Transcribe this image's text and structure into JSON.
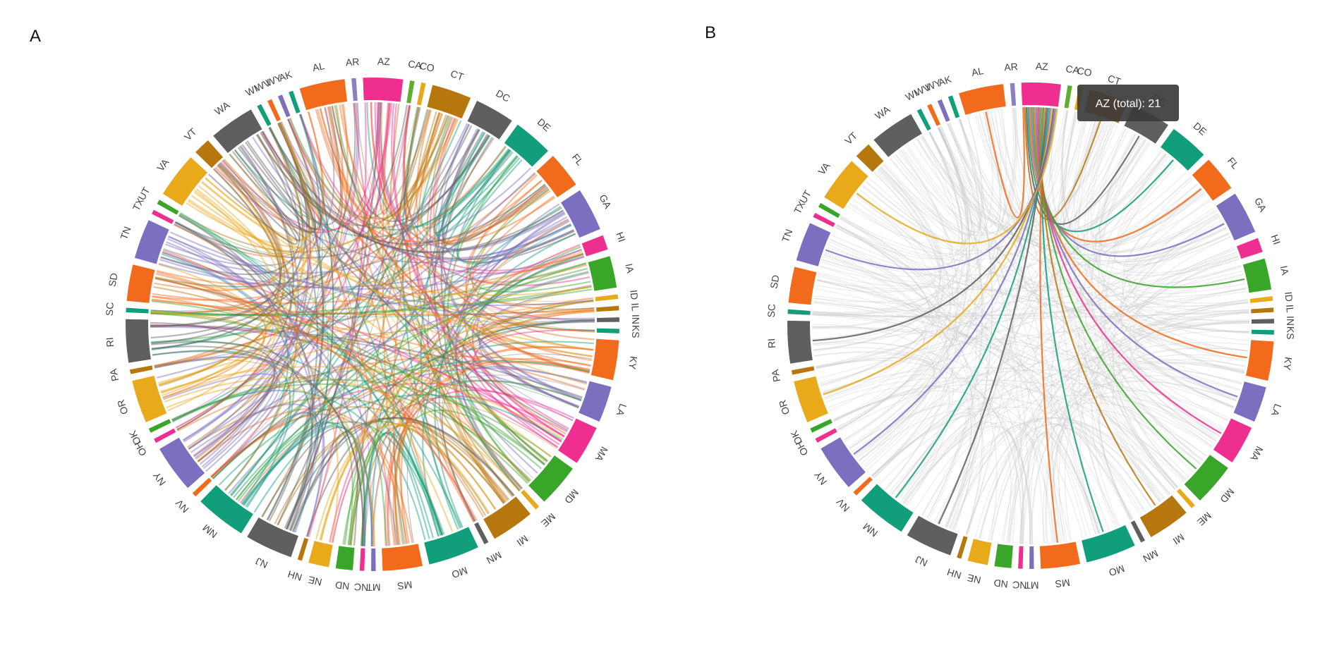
{
  "panels": [
    {
      "id": "A",
      "label": "A",
      "highlight": null
    },
    {
      "id": "B",
      "label": "B",
      "highlight": "AZ"
    }
  ],
  "tooltip": {
    "text": "AZ (total): 21"
  },
  "segments": [
    {
      "code": "AL",
      "size": 4,
      "color": "#f26a1b"
    },
    {
      "code": "AR",
      "size": 0.4,
      "color": "#8b80c0"
    },
    {
      "code": "AZ",
      "size": 3.5,
      "color": "#ee2f8f"
    },
    {
      "code": "CA",
      "size": 0.4,
      "color": "#5fae2e"
    },
    {
      "code": "CO",
      "size": 0.4,
      "color": "#e8a91a"
    },
    {
      "code": "CT",
      "size": 3.5,
      "color": "#b7770f"
    },
    {
      "code": "DC",
      "size": 3.5,
      "color": "#5f5f5f"
    },
    {
      "code": "DE",
      "size": 3.5,
      "color": "#119e7b"
    },
    {
      "code": "FL",
      "size": 3.2,
      "color": "#f26a1b"
    },
    {
      "code": "GA",
      "size": 3.8,
      "color": "#7b6fbf"
    },
    {
      "code": "HI",
      "size": 1.3,
      "color": "#ee2f8f"
    },
    {
      "code": "IA",
      "size": 2.8,
      "color": "#3aa629"
    },
    {
      "code": "ID",
      "size": 0.4,
      "color": "#e8a91a"
    },
    {
      "code": "IL",
      "size": 0.4,
      "color": "#b7770f"
    },
    {
      "code": "IN",
      "size": 0.4,
      "color": "#5f5f5f"
    },
    {
      "code": "KS",
      "size": 0.4,
      "color": "#119e7b"
    },
    {
      "code": "KY",
      "size": 3.5,
      "color": "#f26a1b"
    },
    {
      "code": "LA",
      "size": 3.2,
      "color": "#7b6fbf"
    },
    {
      "code": "MA",
      "size": 3.5,
      "color": "#ee2f8f"
    },
    {
      "code": "MD",
      "size": 3.8,
      "color": "#3aa629"
    },
    {
      "code": "ME",
      "size": 0.4,
      "color": "#e8a91a"
    },
    {
      "code": "MI",
      "size": 3.8,
      "color": "#b7770f"
    },
    {
      "code": "MN",
      "size": 0.4,
      "color": "#5f5f5f"
    },
    {
      "code": "MO",
      "size": 4.5,
      "color": "#119e7b"
    },
    {
      "code": "MS",
      "size": 3.5,
      "color": "#f26a1b"
    },
    {
      "code": "MT",
      "size": 0.4,
      "color": "#7b6fbf"
    },
    {
      "code": "NC",
      "size": 0.4,
      "color": "#ee2f8f"
    },
    {
      "code": "ND",
      "size": 1.5,
      "color": "#3aa629"
    },
    {
      "code": "NE",
      "size": 1.8,
      "color": "#e8a91a"
    },
    {
      "code": "NH",
      "size": 0.4,
      "color": "#b7770f"
    },
    {
      "code": "NJ",
      "size": 4.2,
      "color": "#5f5f5f"
    },
    {
      "code": "NM",
      "size": 4.5,
      "color": "#119e7b"
    },
    {
      "code": "NV",
      "size": 0.4,
      "color": "#f26a1b"
    },
    {
      "code": "NY",
      "size": 4.2,
      "color": "#7b6fbf"
    },
    {
      "code": "OH",
      "size": 0.4,
      "color": "#ee2f8f"
    },
    {
      "code": "OK",
      "size": 0.4,
      "color": "#3aa629"
    },
    {
      "code": "OR",
      "size": 3.8,
      "color": "#e8a91a"
    },
    {
      "code": "PA",
      "size": 0.4,
      "color": "#b7770f"
    },
    {
      "code": "RI",
      "size": 3.8,
      "color": "#5f5f5f"
    },
    {
      "code": "SC",
      "size": 0.4,
      "color": "#119e7b"
    },
    {
      "code": "SD",
      "size": 3.2,
      "color": "#f26a1b"
    },
    {
      "code": "TN",
      "size": 3.5,
      "color": "#7b6fbf"
    },
    {
      "code": "TX",
      "size": 0.4,
      "color": "#ee2f8f"
    },
    {
      "code": "UT",
      "size": 0.4,
      "color": "#3aa629"
    },
    {
      "code": "VA",
      "size": 4.0,
      "color": "#e8a91a"
    },
    {
      "code": "VT",
      "size": 1.5,
      "color": "#b7770f"
    },
    {
      "code": "WA",
      "size": 4.0,
      "color": "#5f5f5f"
    },
    {
      "code": "WI",
      "size": 0.4,
      "color": "#119e7b"
    },
    {
      "code": "WV",
      "size": 0.4,
      "color": "#f26a1b"
    },
    {
      "code": "WY",
      "size": 0.4,
      "color": "#7b6fbf"
    },
    {
      "code": "AK",
      "size": 0.4,
      "color": "#119e7b"
    }
  ]
}
